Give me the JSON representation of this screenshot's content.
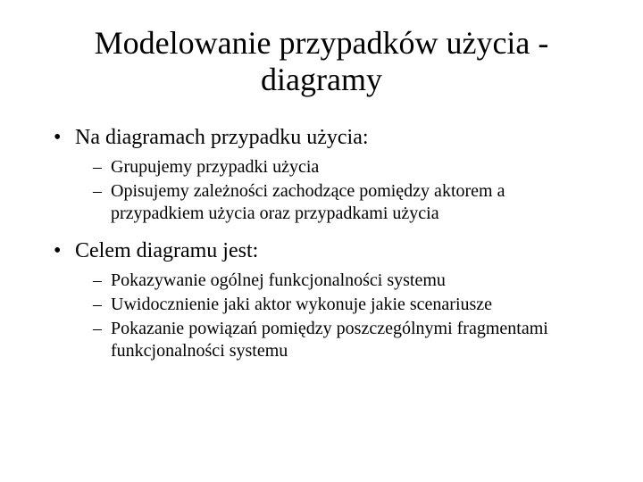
{
  "title": "Modelowanie przypadków użycia - diagramy",
  "bullets": [
    {
      "text": "Na diagramach przypadku użycia:",
      "sub": [
        "Grupujemy przypadki użycia",
        "Opisujemy zależności zachodzące pomiędzy aktorem a przypadkiem użycia oraz przypadkami użycia"
      ]
    },
    {
      "text": "Celem diagramu jest:",
      "sub": [
        "Pokazywanie ogólnej funkcjonalności systemu",
        "Uwidocznienie jaki aktor wykonuje jakie scenariusze",
        "Pokazanie powiązań pomiędzy poszczególnymi fragmentami funkcjonalności systemu"
      ]
    }
  ],
  "style": {
    "background_color": "#ffffff",
    "text_color": "#000000",
    "font_family": "Times New Roman",
    "title_fontsize": 36,
    "level1_fontsize": 24,
    "level2_fontsize": 20,
    "level1_marker": "•",
    "level2_marker": "–"
  }
}
